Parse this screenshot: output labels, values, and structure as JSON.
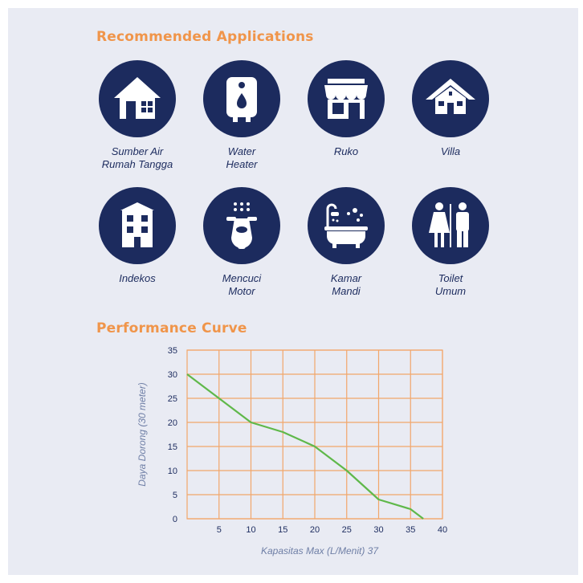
{
  "headings": {
    "applications": "Recommended Applications",
    "performance": "Performance Curve"
  },
  "applications": [
    {
      "label": "Sumber Air\nRumah Tangga",
      "icon": "house-icon"
    },
    {
      "label": "Water\nHeater",
      "icon": "water-heater-icon"
    },
    {
      "label": "Ruko",
      "icon": "shop-icon"
    },
    {
      "label": "Villa",
      "icon": "villa-icon"
    },
    {
      "label": "Indekos",
      "icon": "building-icon"
    },
    {
      "label": "Mencuci\nMotor",
      "icon": "scooter-wash-icon"
    },
    {
      "label": "Kamar\nMandi",
      "icon": "bathtub-icon"
    },
    {
      "label": "Toilet\nUmum",
      "icon": "restroom-icon"
    }
  ],
  "colors": {
    "navy": "#1c2b5e",
    "accent_orange": "#f0954a",
    "grid": "#f2a66a",
    "line": "#5fb84a",
    "background": "#e9ebf3"
  },
  "chart_data": {
    "type": "line",
    "title": "Performance Curve",
    "xlabel": "Kapasitas Max (L/Menit) 37",
    "ylabel": "Daya Dorong (30 meter)",
    "xlim": [
      0,
      40
    ],
    "ylim": [
      0,
      35
    ],
    "x_ticks": [
      5,
      10,
      15,
      20,
      25,
      30,
      35,
      40
    ],
    "y_ticks": [
      0,
      5,
      10,
      15,
      20,
      25,
      30,
      35
    ],
    "grid": true,
    "series": [
      {
        "x": [
          0,
          10,
          15,
          20,
          25,
          30,
          35,
          37
        ],
        "y": [
          30,
          20,
          18,
          15,
          10,
          4,
          2,
          0
        ]
      }
    ]
  }
}
